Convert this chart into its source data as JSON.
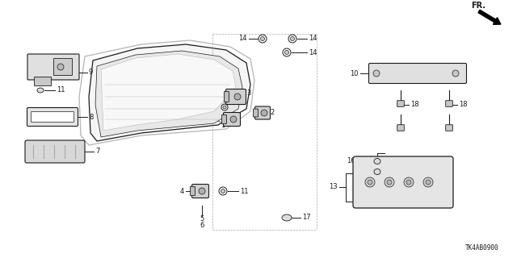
{
  "bg_color": "#ffffff",
  "line_color": "#1a1a1a",
  "diagram_code": "TK4AB0900",
  "figsize": [
    6.4,
    3.2
  ],
  "dpi": 100,
  "xlim": [
    0,
    640
  ],
  "ylim": [
    0,
    320
  ]
}
